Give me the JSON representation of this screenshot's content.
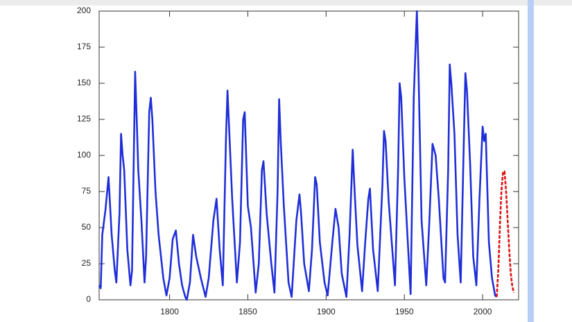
{
  "chart_data": {
    "type": "line",
    "xlim": [
      1755,
      2023
    ],
    "ylim": [
      0,
      200
    ],
    "xticks": [
      1800,
      1850,
      1900,
      1950,
      2000
    ],
    "yticks": [
      0,
      25,
      50,
      75,
      100,
      125,
      150,
      175,
      200
    ],
    "series": [
      {
        "color": "#1f2ed8",
        "x": [
          1755,
          1756,
          1757,
          1759,
          1761,
          1763,
          1765,
          1766,
          1768,
          1769,
          1770,
          1771,
          1773,
          1775,
          1776,
          1777,
          1778,
          1779,
          1780,
          1782,
          1784,
          1785,
          1787,
          1788,
          1789,
          1791,
          1793,
          1796,
          1798,
          1800,
          1802,
          1804,
          1806,
          1808,
          1810,
          1811,
          1813,
          1815,
          1817,
          1820,
          1823,
          1825,
          1828,
          1830,
          1832,
          1834,
          1836,
          1837,
          1838,
          1840,
          1843,
          1845,
          1847,
          1848,
          1850,
          1852,
          1855,
          1857,
          1859,
          1860,
          1862,
          1865,
          1867,
          1869,
          1870,
          1871,
          1873,
          1876,
          1878,
          1881,
          1883,
          1884,
          1886,
          1889,
          1891,
          1893,
          1894,
          1896,
          1899,
          1901,
          1904,
          1906,
          1908,
          1910,
          1913,
          1915,
          1917,
          1918,
          1920,
          1923,
          1925,
          1927,
          1928,
          1930,
          1933,
          1936,
          1937,
          1938,
          1940,
          1944,
          1946,
          1947,
          1948,
          1950,
          1954,
          1956,
          1958,
          1959,
          1961,
          1964,
          1966,
          1968,
          1970,
          1972,
          1975,
          1976,
          1978,
          1979,
          1980,
          1982,
          1984,
          1986,
          1988,
          1989,
          1990,
          1992,
          1994,
          1996,
          1998,
          2000,
          2001,
          2002,
          2004,
          2006,
          2008,
          2009
        ],
        "values": [
          10,
          8,
          45,
          62,
          85,
          45,
          20,
          12,
          60,
          115,
          100,
          90,
          35,
          10,
          20,
          90,
          158,
          125,
          90,
          55,
          12,
          30,
          130,
          140,
          125,
          75,
          45,
          15,
          3,
          15,
          42,
          48,
          25,
          10,
          2,
          0,
          12,
          45,
          30,
          15,
          2,
          15,
          55,
          70,
          35,
          10,
          110,
          145,
          120,
          70,
          12,
          40,
          125,
          130,
          65,
          50,
          5,
          25,
          90,
          96,
          60,
          25,
          5,
          75,
          139,
          110,
          65,
          12,
          2,
          55,
          73,
          60,
          25,
          6,
          35,
          85,
          80,
          40,
          12,
          3,
          40,
          63,
          50,
          18,
          2,
          45,
          104,
          80,
          38,
          6,
          40,
          70,
          77,
          35,
          6,
          80,
          117,
          110,
          68,
          10,
          90,
          150,
          140,
          84,
          4,
          140,
          200,
          160,
          55,
          10,
          55,
          108,
          100,
          70,
          15,
          12,
          90,
          163,
          150,
          115,
          45,
          12,
          110,
          157,
          145,
          95,
          30,
          10,
          70,
          120,
          110,
          115,
          40,
          15,
          3,
          2
        ]
      },
      {
        "color": "#e01010",
        "dashed": true,
        "x": [
          2009,
          2010,
          2011,
          2012,
          2013,
          2014,
          2015,
          2016,
          2017,
          2018,
          2019,
          2020
        ],
        "values": [
          2,
          20,
          50,
          75,
          88,
          89,
          75,
          55,
          35,
          18,
          9,
          5
        ]
      }
    ]
  }
}
